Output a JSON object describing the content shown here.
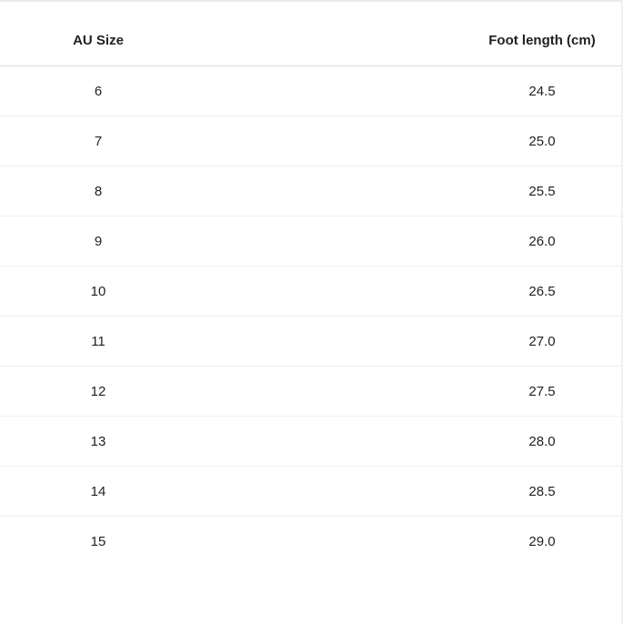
{
  "table": {
    "headers": [
      "AU Size",
      "Foot length (cm)"
    ],
    "rows": [
      [
        "6",
        "24.5"
      ],
      [
        "7",
        "25.0"
      ],
      [
        "8",
        "25.5"
      ],
      [
        "9",
        "26.0"
      ],
      [
        "10",
        "26.5"
      ],
      [
        "11",
        "27.0"
      ],
      [
        "12",
        "27.5"
      ],
      [
        "13",
        "28.0"
      ],
      [
        "14",
        "28.5"
      ],
      [
        "15",
        "29.0"
      ]
    ]
  }
}
